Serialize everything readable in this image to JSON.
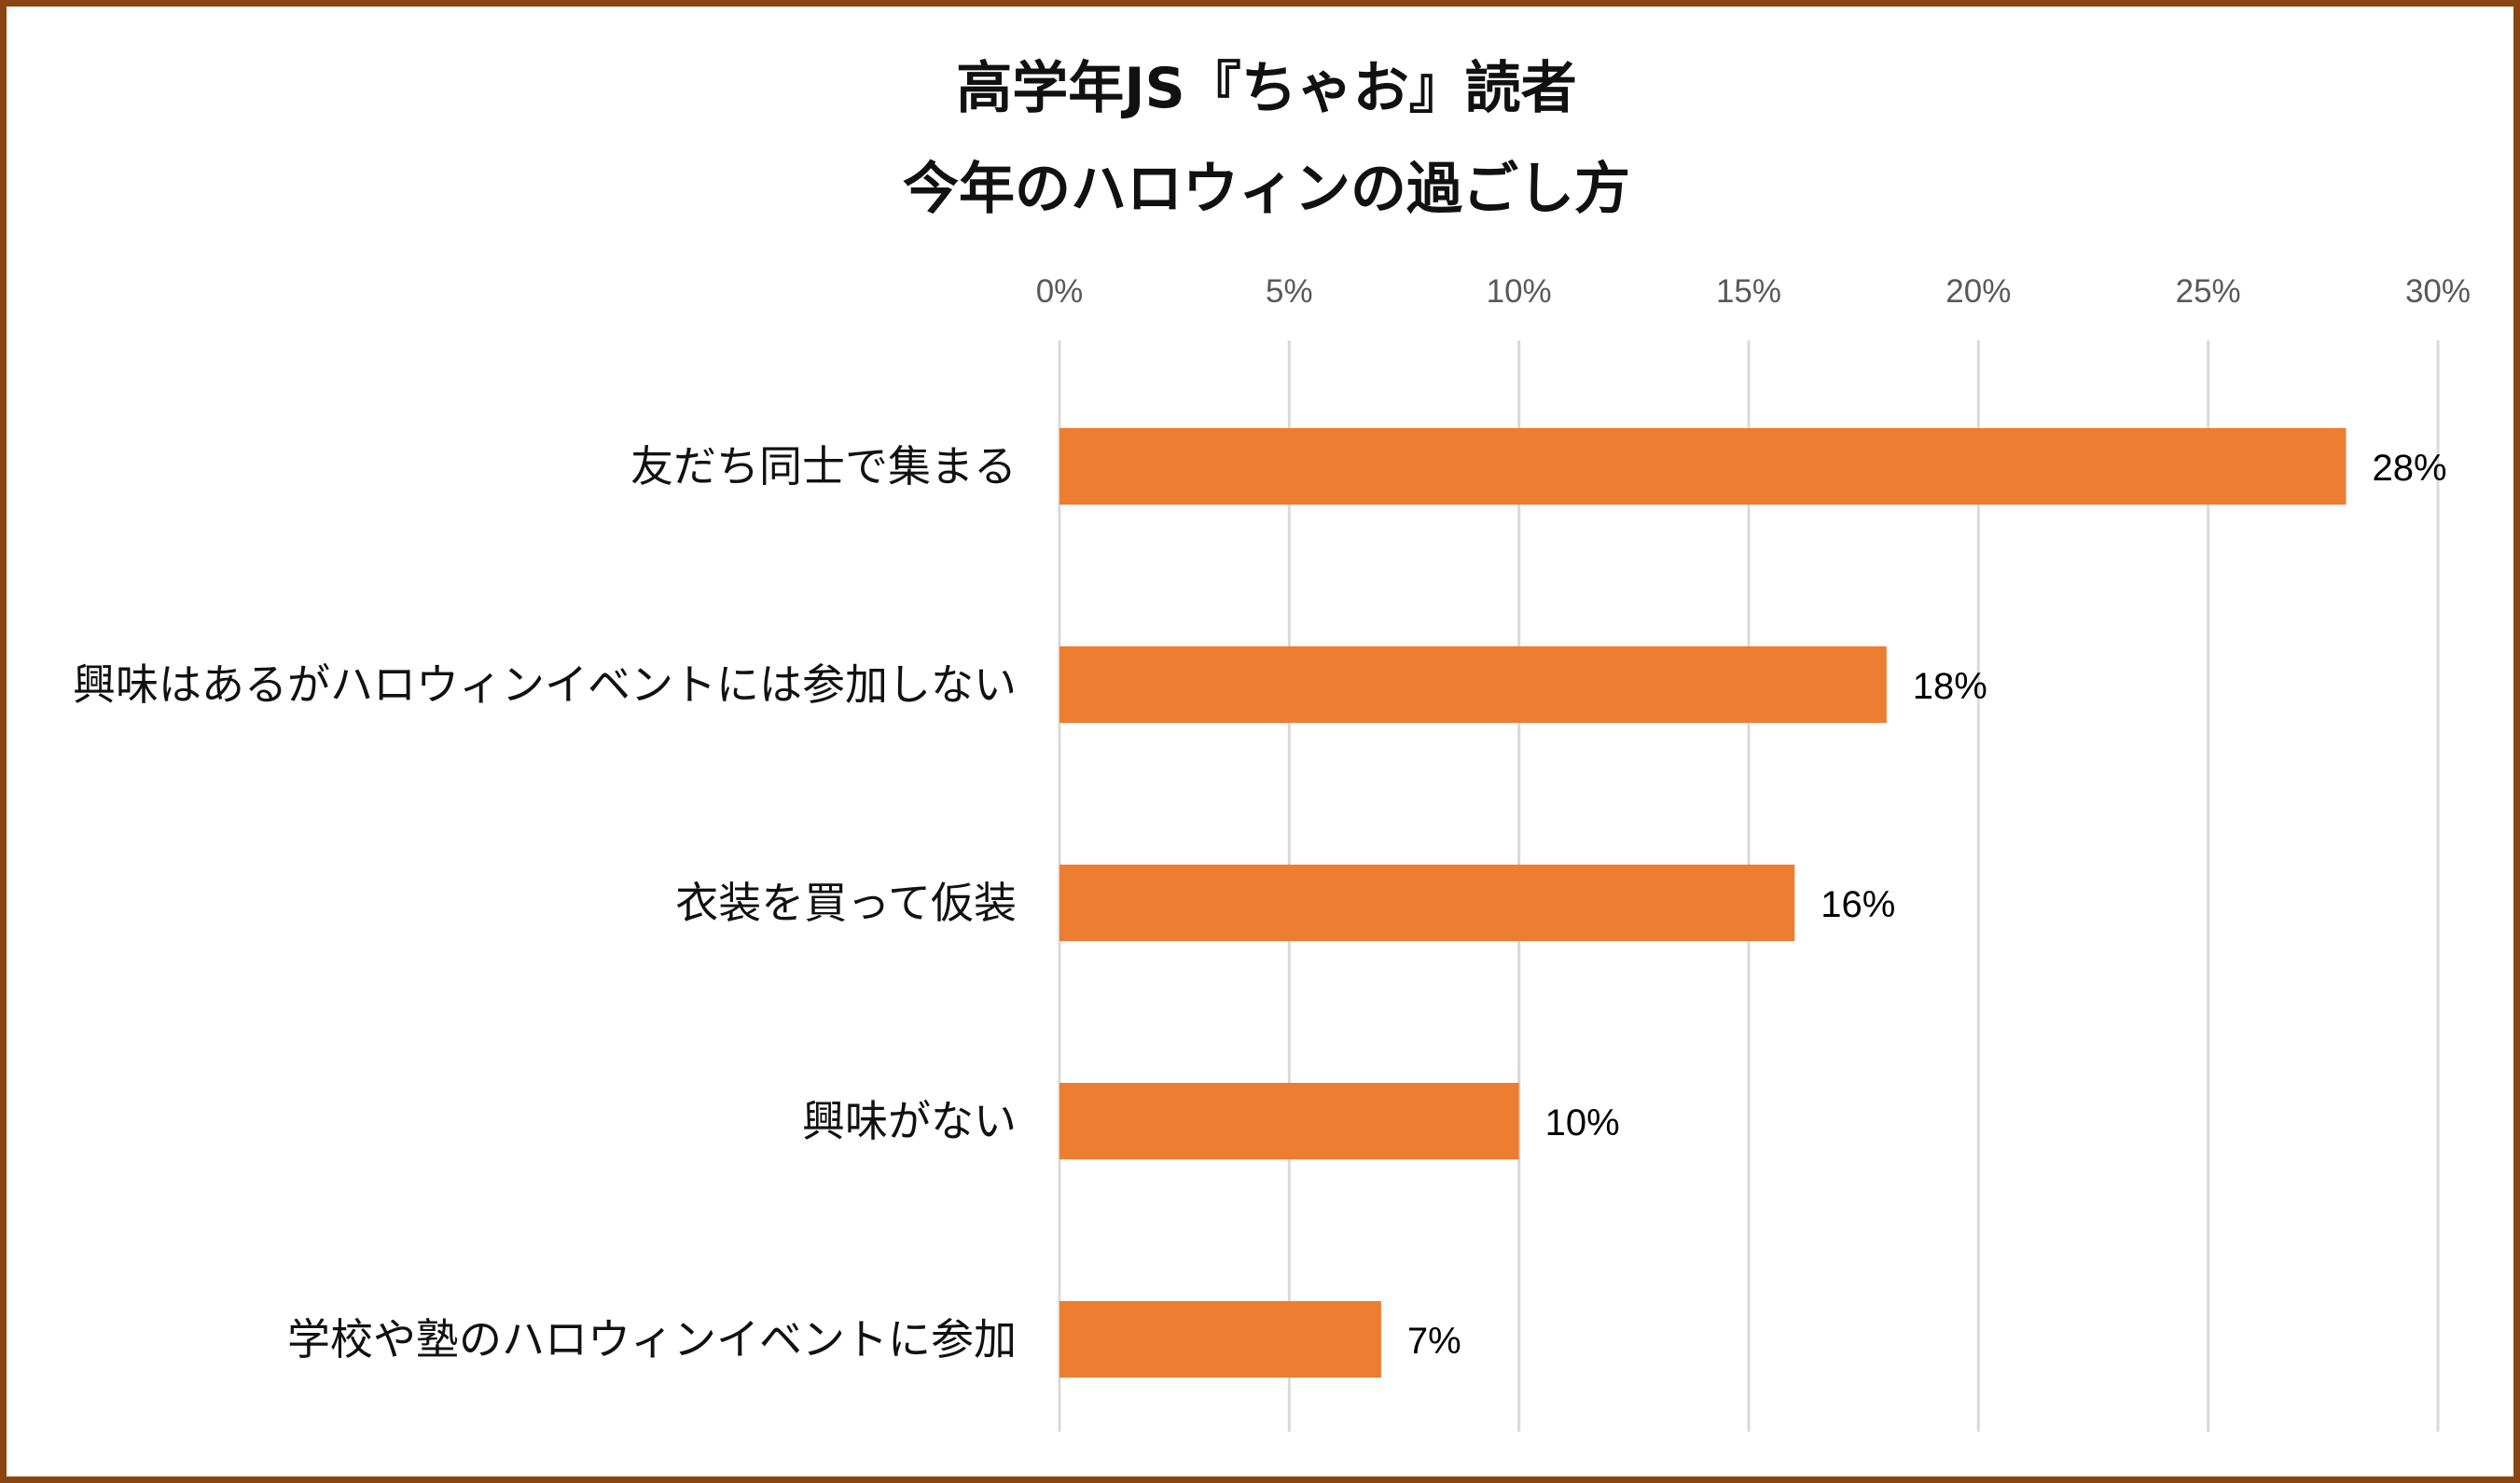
{
  "chart_data": {
    "type": "bar",
    "orientation": "horizontal",
    "title_lines": [
      "高学年JS『ちゃお』読者",
      "今年のハロウィンの過ごし方"
    ],
    "categories": [
      "友だち同士で集まる",
      "興味はあるがハロウィンイベントには参加しない",
      "衣装を買って仮装",
      "興味がない",
      "学校や塾のハロウィンイベントに参加"
    ],
    "values": [
      28,
      18,
      16,
      10,
      7
    ],
    "data_labels": [
      "28%",
      "18%",
      "16%",
      "10%",
      "7%"
    ],
    "xlim": [
      0,
      30
    ],
    "x_ticks": [
      0,
      5,
      10,
      15,
      20,
      25,
      30
    ],
    "x_tick_labels": [
      "0%",
      "5%",
      "10%",
      "15%",
      "20%",
      "25%",
      "30%"
    ],
    "x_axis_position": "top",
    "grid": true,
    "legend": "none",
    "bar_color": "#ED7D31",
    "grid_color": "#D9D9D9",
    "border_color": "#8B4513"
  }
}
